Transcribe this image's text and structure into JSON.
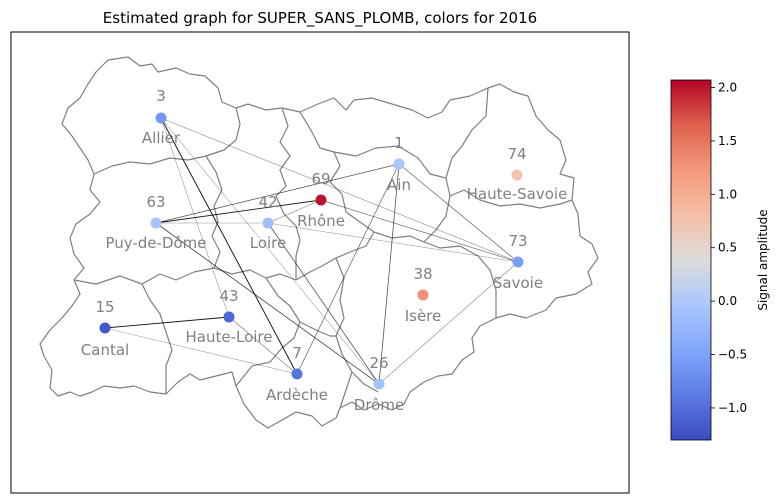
{
  "chart_data": {
    "type": "graph-map",
    "title": "Estimated graph for SUPER_SANS_PLOMB, colors for 2016",
    "colorbar": {
      "label": "Signal amplitude",
      "colormap": "coolwarm",
      "range": [
        -1.3,
        2.07
      ],
      "ticks": [
        "2.0",
        "1.5",
        "1.0",
        "0.5",
        "0.0",
        "−0.5",
        "−1.0"
      ],
      "tick_values": [
        2.0,
        1.5,
        1.0,
        0.5,
        0.0,
        -0.5,
        -1.0
      ]
    },
    "nodes": [
      {
        "id": "3",
        "name": "Allier",
        "value": -0.6
      },
      {
        "id": "1",
        "name": "Ain",
        "value": -0.05
      },
      {
        "id": "74",
        "name": "Haute-Savoie",
        "value": 0.75
      },
      {
        "id": "69",
        "name": "Rhône",
        "value": 2.0
      },
      {
        "id": "63",
        "name": "Puy-de-Dôme",
        "value": -0.08
      },
      {
        "id": "42",
        "name": "Loire",
        "value": -0.15
      },
      {
        "id": "73",
        "name": "Savoie",
        "value": -0.55
      },
      {
        "id": "38",
        "name": "Isère",
        "value": 1.3
      },
      {
        "id": "15",
        "name": "Cantal",
        "value": -1.2
      },
      {
        "id": "43",
        "name": "Haute-Loire",
        "value": -1.05
      },
      {
        "id": "7",
        "name": "Ardèche",
        "value": -0.95
      },
      {
        "id": "26",
        "name": "Drôme",
        "value": -0.1
      }
    ],
    "edges": [
      {
        "source": "3",
        "target": "7",
        "weight": 0.9
      },
      {
        "source": "3",
        "target": "43",
        "weight": 0.25
      },
      {
        "source": "3",
        "target": "73",
        "weight": 0.3
      },
      {
        "source": "63",
        "target": "69",
        "weight": 0.85
      },
      {
        "source": "63",
        "target": "1",
        "weight": 0.6
      },
      {
        "source": "63",
        "target": "42",
        "weight": 0.25
      },
      {
        "source": "63",
        "target": "26",
        "weight": 0.65
      },
      {
        "source": "69",
        "target": "73",
        "weight": 0.45
      },
      {
        "source": "69",
        "target": "42",
        "weight": 0.35
      },
      {
        "source": "1",
        "target": "73",
        "weight": 0.5
      },
      {
        "source": "1",
        "target": "26",
        "weight": 0.6
      },
      {
        "source": "1",
        "target": "7",
        "weight": 0.5
      },
      {
        "source": "42",
        "target": "73",
        "weight": 0.25
      },
      {
        "source": "42",
        "target": "26",
        "weight": 0.6
      },
      {
        "source": "15",
        "target": "43",
        "weight": 0.9
      },
      {
        "source": "15",
        "target": "7",
        "weight": 0.2
      },
      {
        "source": "43",
        "target": "7",
        "weight": 0.35
      },
      {
        "source": "26",
        "target": "73",
        "weight": 0.35
      },
      {
        "source": "3",
        "target": "26",
        "weight": 0.2
      }
    ]
  }
}
